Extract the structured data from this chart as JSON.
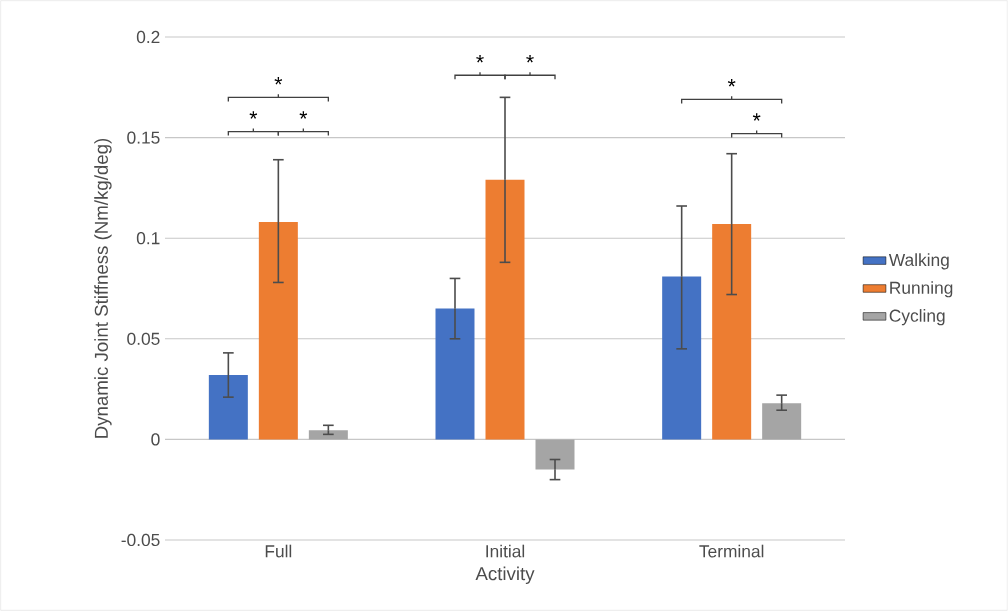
{
  "chart_data": {
    "type": "bar",
    "xlabel": "Activity",
    "ylabel": "Dynamic Joint Stiffness (Nm/kg/deg)",
    "categories": [
      "Full",
      "Initial",
      "Terminal"
    ],
    "series": [
      {
        "name": "Walking",
        "color": "#4472c4",
        "values": [
          0.032,
          0.065,
          0.081
        ],
        "errors": [
          [
            0.021,
            0.043
          ],
          [
            0.05,
            0.08
          ],
          [
            0.045,
            0.116
          ]
        ]
      },
      {
        "name": "Running",
        "color": "#ed7d31",
        "values": [
          0.108,
          0.129,
          0.107
        ],
        "errors": [
          [
            0.078,
            0.139
          ],
          [
            0.088,
            0.17
          ],
          [
            0.072,
            0.142
          ]
        ]
      },
      {
        "name": "Cycling",
        "color": "#a5a5a5",
        "values": [
          0.0045,
          -0.015,
          0.018
        ],
        "errors": [
          [
            0.0025,
            0.007
          ],
          [
            -0.02,
            -0.01
          ],
          [
            0.0145,
            0.022
          ]
        ]
      }
    ],
    "ylim": [
      -0.05,
      0.2
    ],
    "yticks": [
      -0.05,
      0,
      0.05,
      0.1,
      0.15,
      0.2
    ],
    "grid": "y",
    "legend": "right",
    "annotations": [
      "*",
      "*",
      "*",
      "*",
      "*",
      "*",
      "*"
    ]
  }
}
